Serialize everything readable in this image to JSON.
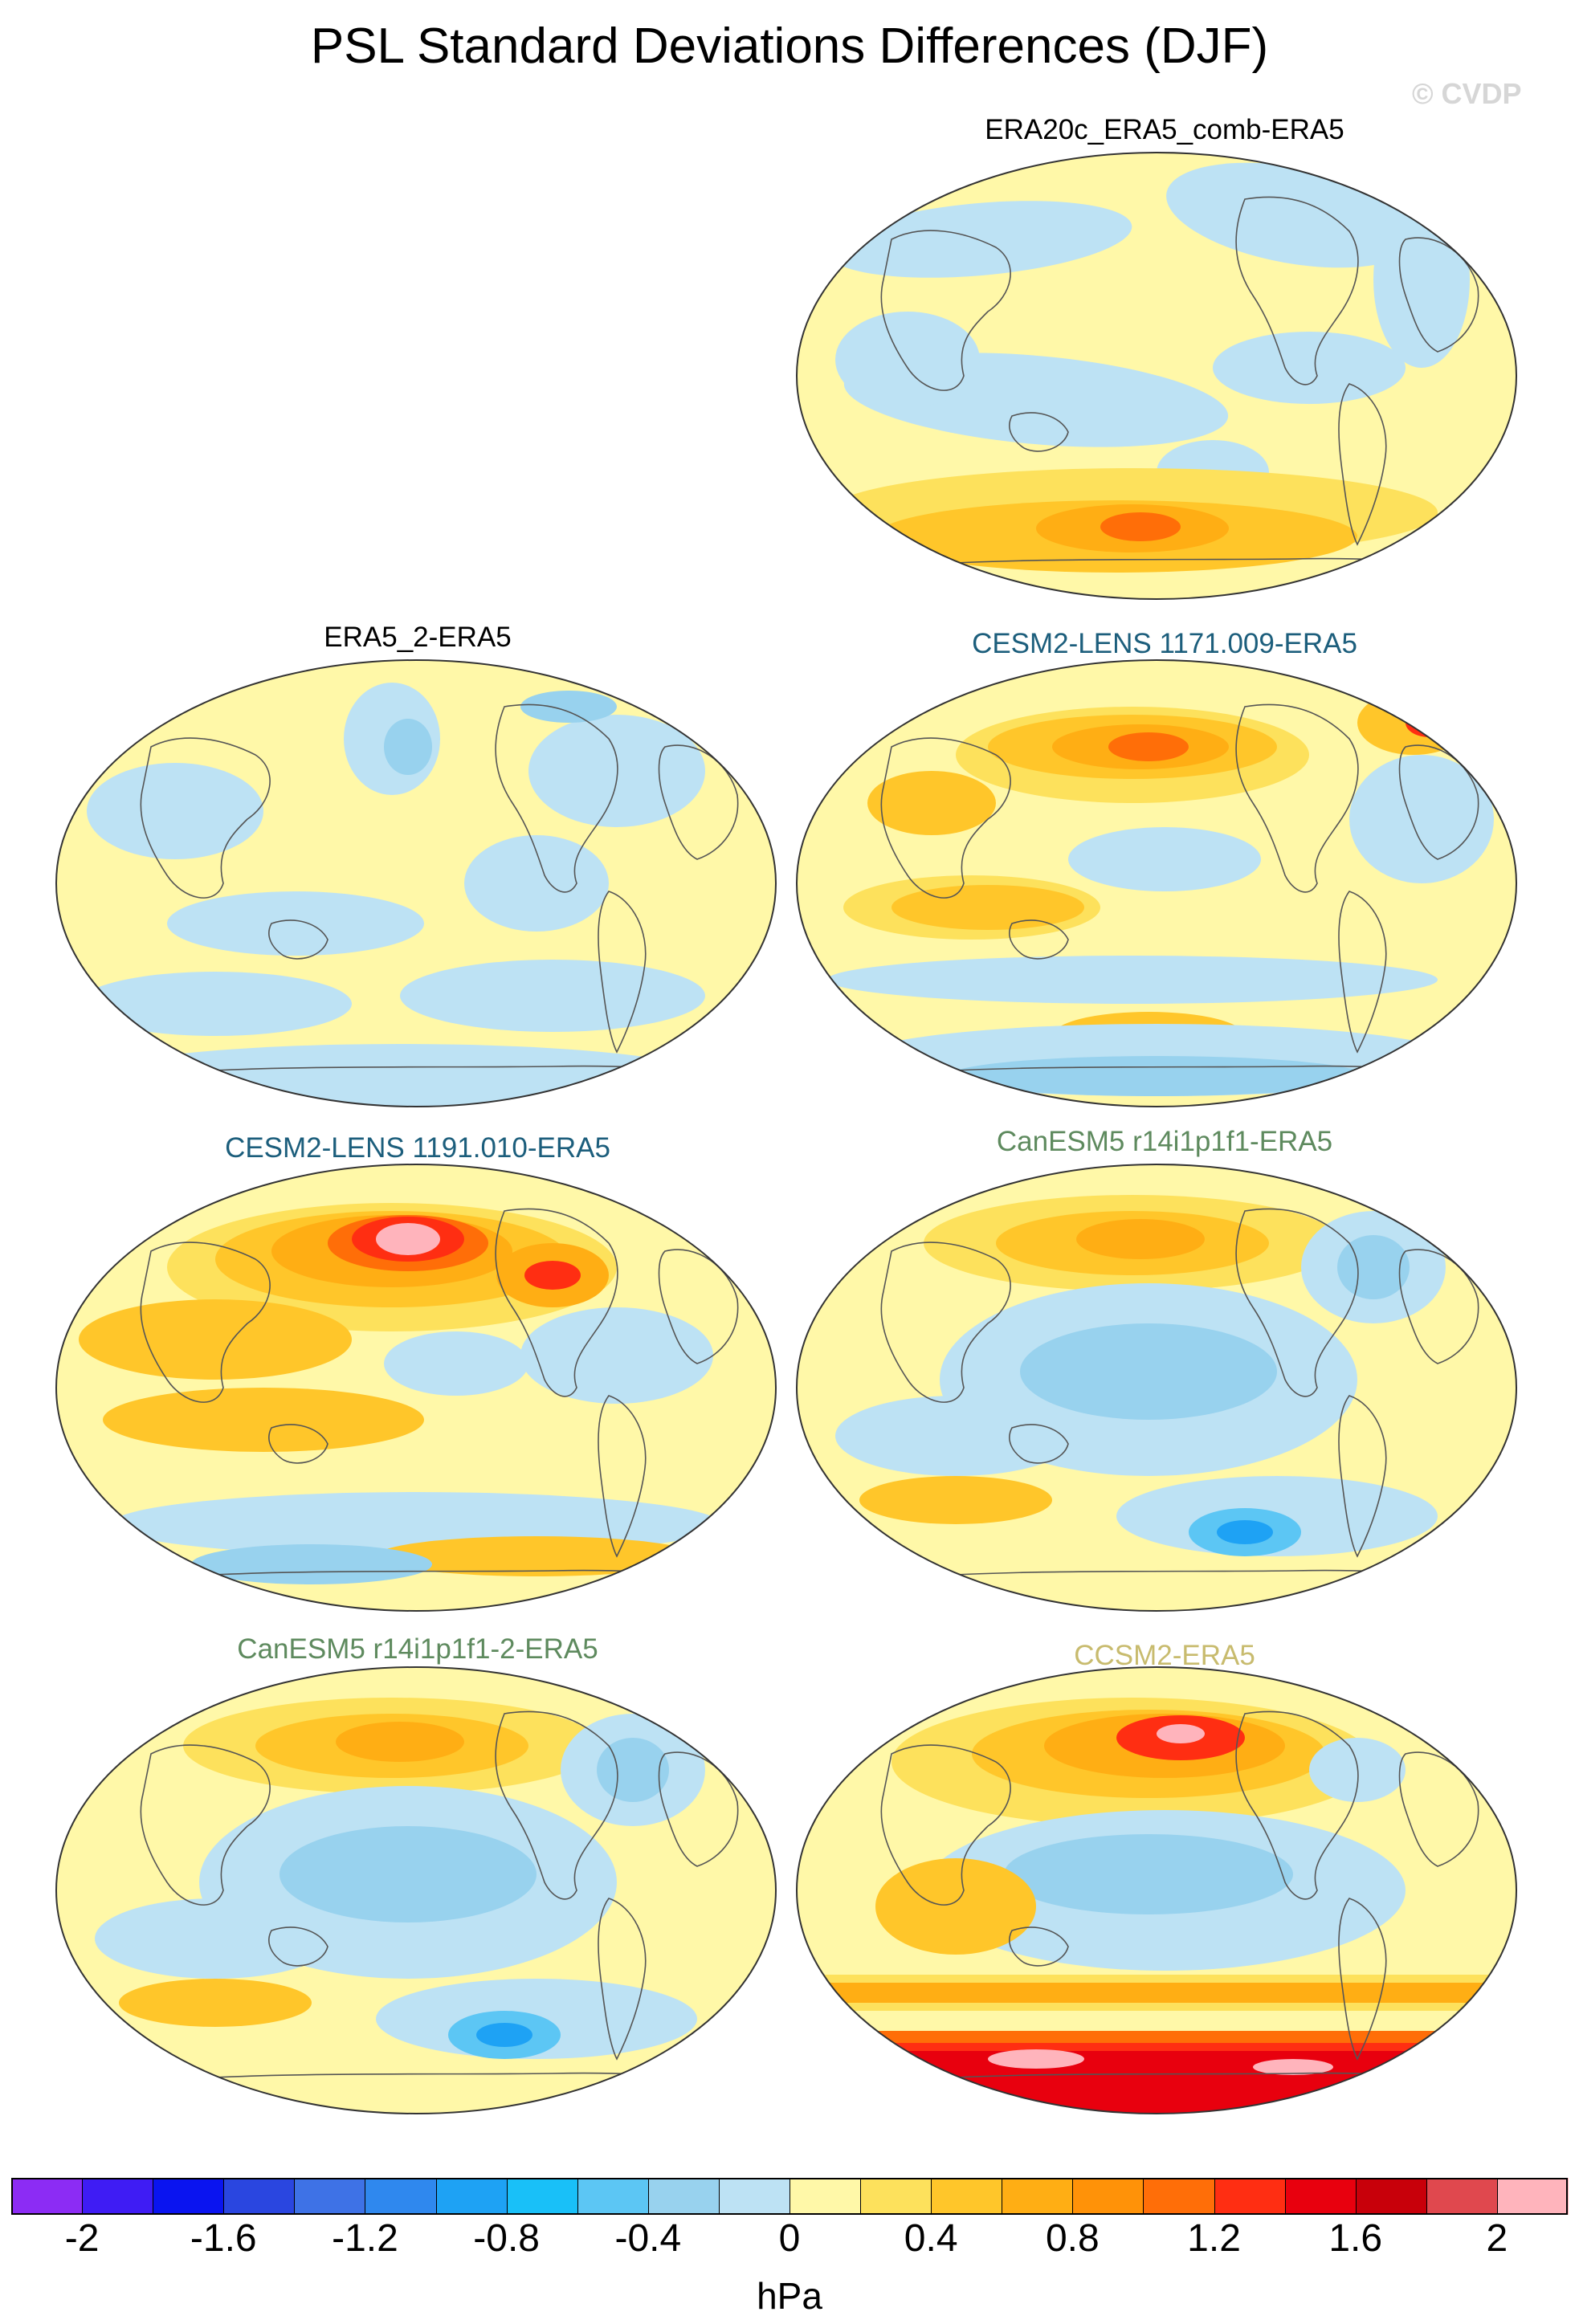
{
  "figure": {
    "title": "PSL Standard Deviations Differences (DJF)",
    "watermark": "© CVDP"
  },
  "panels": [
    {
      "title": "ERA20c_ERA5_comb-ERA5",
      "title_color": "#000000",
      "pattern": "weak_south_positive"
    },
    {
      "title": "ERA5_2-ERA5",
      "title_color": "#000000",
      "pattern": "weak_mixed"
    },
    {
      "title": "CESM2-LENS 1171.009-ERA5",
      "title_color": "#1c5e7c",
      "pattern": "north_pacific_positive"
    },
    {
      "title": "CESM2-LENS 1191.010-ERA5",
      "title_color": "#1c5e7c",
      "pattern": "strong_north_pacific_positive"
    },
    {
      "title": "CanESM5 r14i1p1f1-ERA5",
      "title_color": "#5e8a5e",
      "pattern": "tropics_negative"
    },
    {
      "title": "CanESM5 r14i1p1f1-2-ERA5",
      "title_color": "#5e8a5e",
      "pattern": "tropics_negative"
    },
    {
      "title": "CCSM2-ERA5",
      "title_color": "#c8bb6e",
      "pattern": "strong_southern_positive"
    }
  ],
  "colorbar": {
    "unit": "hPa",
    "tick_labels": [
      "-2",
      "-1.6",
      "-1.2",
      "-0.8",
      "-0.4",
      "0",
      "0.4",
      "0.8",
      "1.2",
      "1.6",
      "2"
    ],
    "tick_values": [
      -2,
      -1.6,
      -1.2,
      -0.8,
      -0.4,
      0,
      0.4,
      0.8,
      1.2,
      1.6,
      2
    ],
    "colors": [
      "#8c2cf4",
      "#3f1cf4",
      "#0a14f0",
      "#2a46e0",
      "#3e72e6",
      "#2f88ee",
      "#1ea2f4",
      "#19c0f8",
      "#5cc6f4",
      "#98d2ee",
      "#bde2f4",
      "#fff8a8",
      "#fde15c",
      "#ffc62a",
      "#ffae14",
      "#ff9208",
      "#ff6e08",
      "#ff2e12",
      "#e8000e",
      "#c8000a",
      "#e0484e",
      "#ffb4bc"
    ]
  }
}
